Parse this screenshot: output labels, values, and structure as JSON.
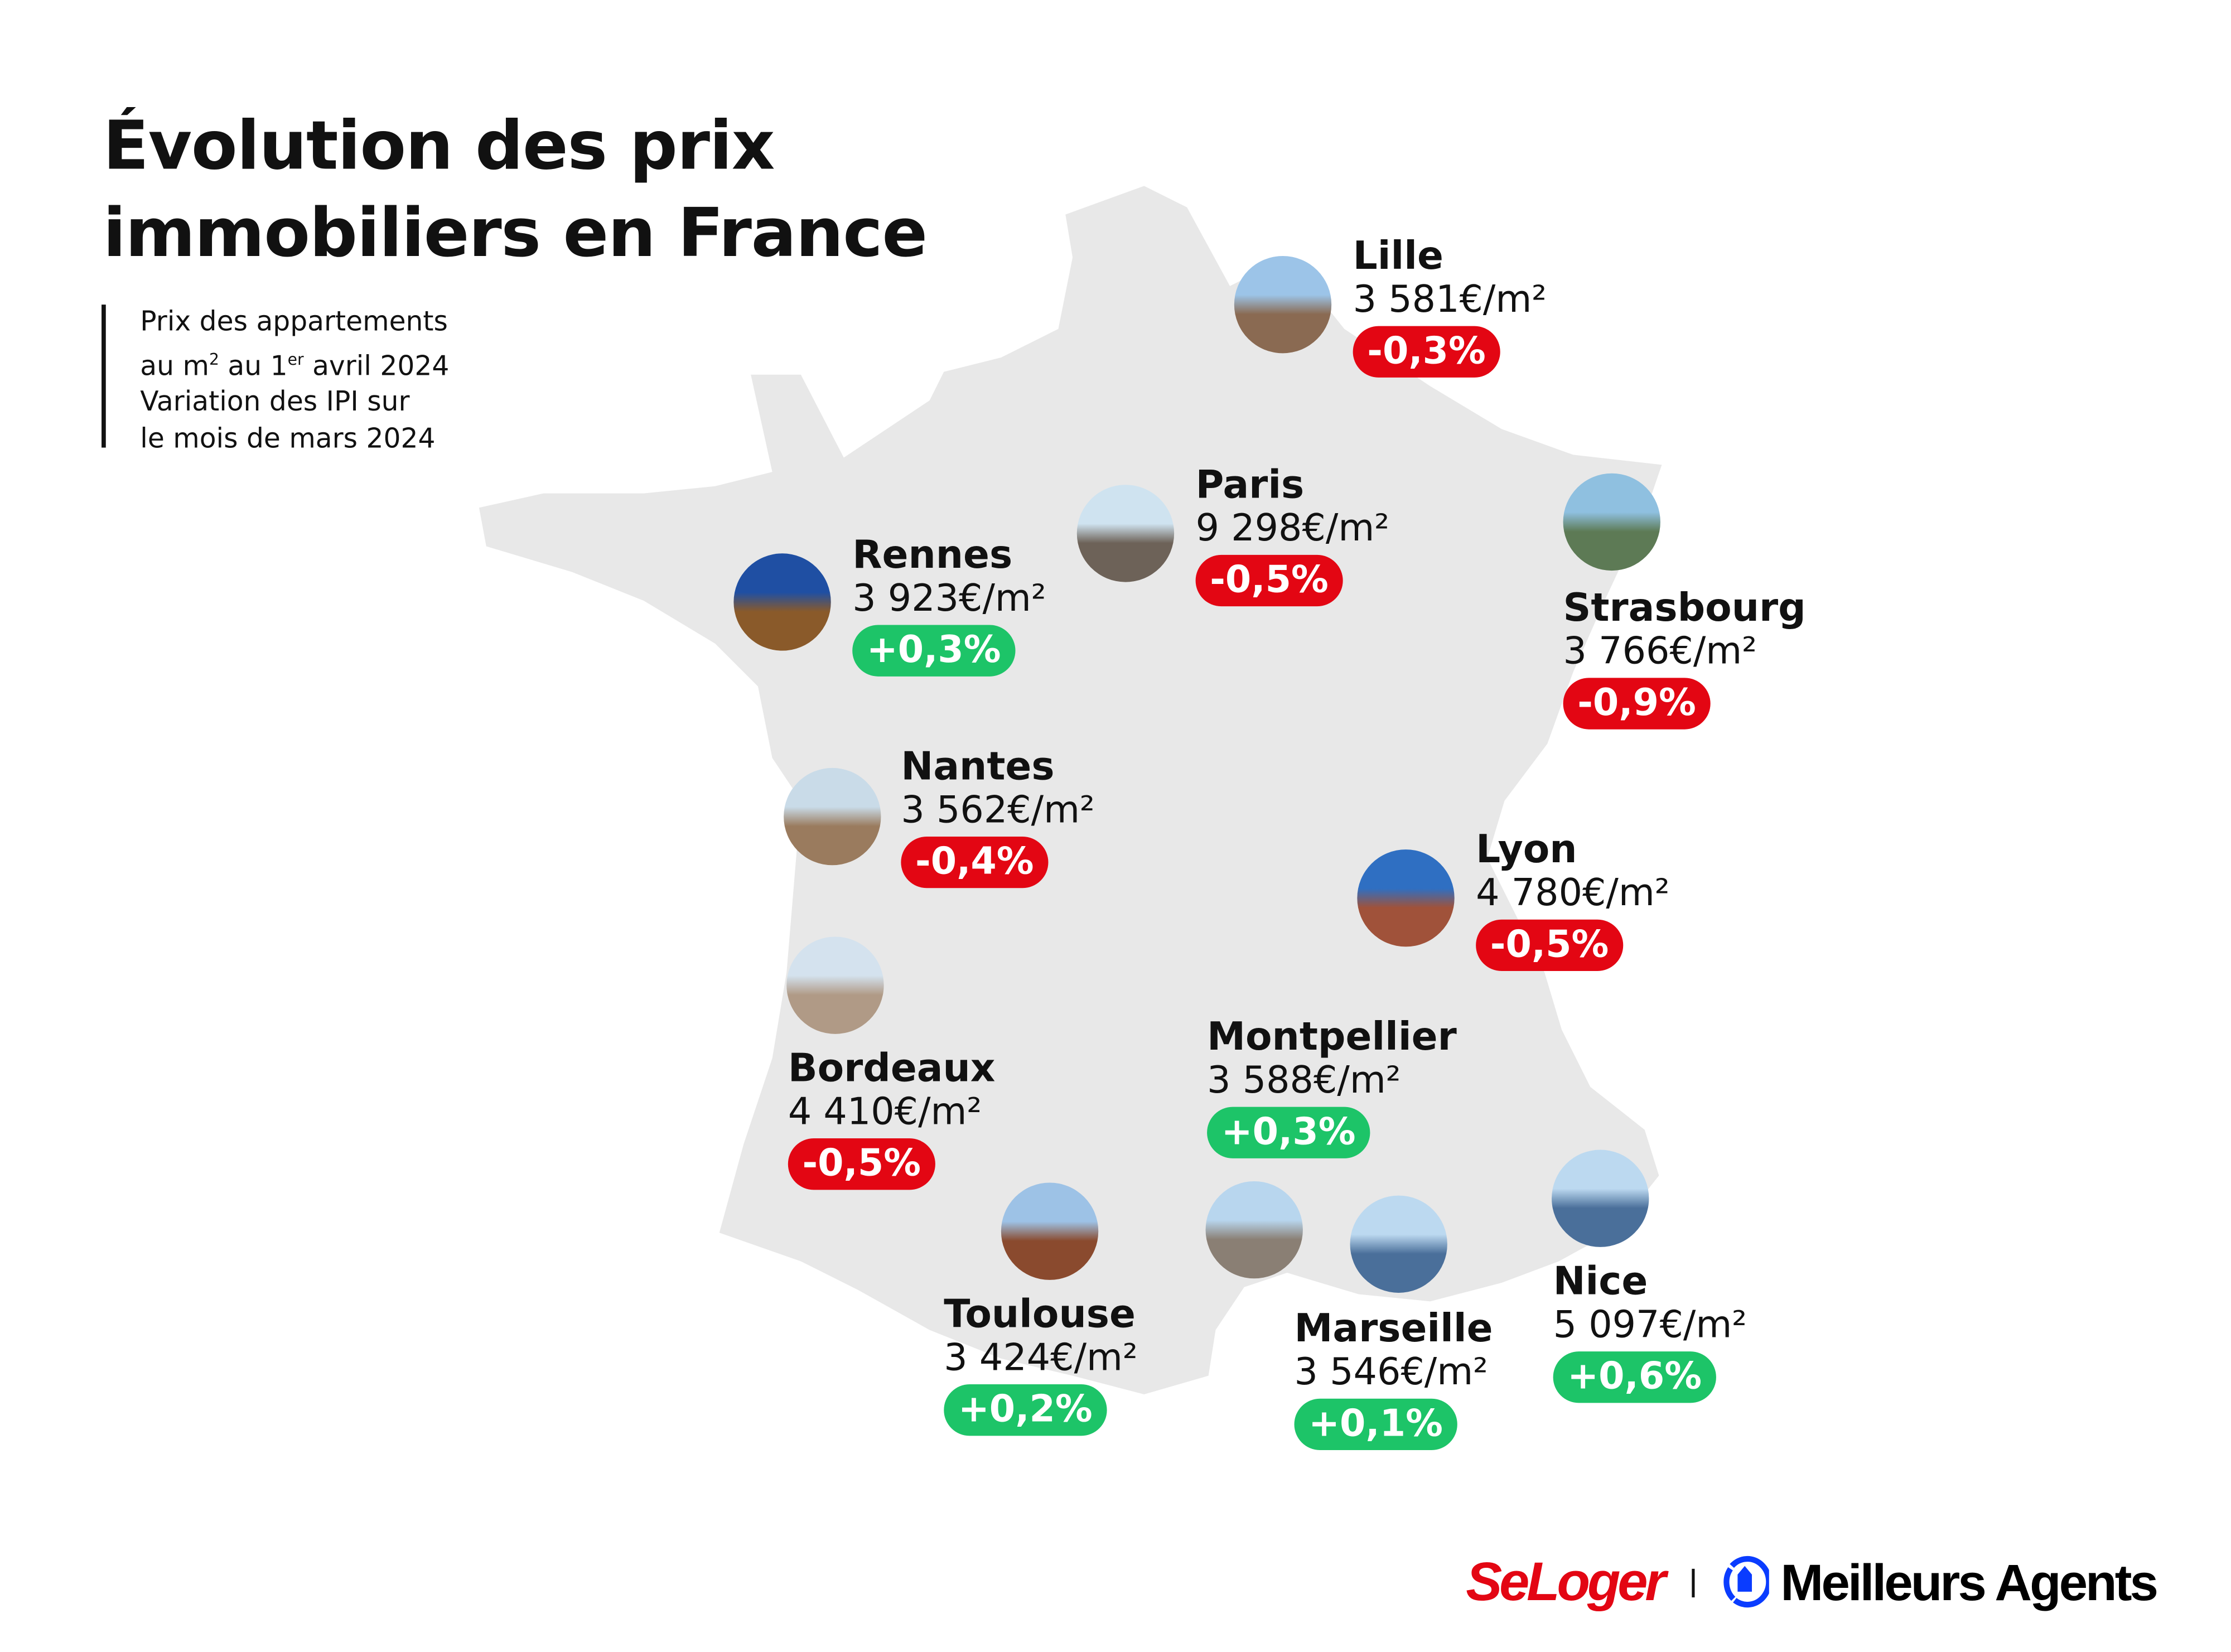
{
  "title_line1": "Évolution des prix",
  "title_line2": "immobiliers en France",
  "subtitle": {
    "line1": "Prix des appartements",
    "line2_a": "au m",
    "line2_sup1": "2",
    "line2_b": " au 1",
    "line2_sup2": "er",
    "line2_c": " avril 2024",
    "line3": "Variation des IPI sur",
    "line4": "le mois de mars 2024"
  },
  "colors": {
    "negative": "#e30613",
    "positive": "#1dc468",
    "map": "#e8e8e8"
  },
  "cities": [
    {
      "name": "Lille",
      "price": "3 581€/m²",
      "variation": "-0,3%",
      "trend": "negative"
    },
    {
      "name": "Paris",
      "price": "9 298€/m²",
      "variation": "-0,5%",
      "trend": "negative"
    },
    {
      "name": "Rennes",
      "price": "3 923€/m²",
      "variation": "+0,3%",
      "trend": "positive"
    },
    {
      "name": "Strasbourg",
      "price": "3 766€/m²",
      "variation": "-0,9%",
      "trend": "negative"
    },
    {
      "name": "Nantes",
      "price": "3 562€/m²",
      "variation": "-0,4%",
      "trend": "negative"
    },
    {
      "name": "Lyon",
      "price": "4 780€/m²",
      "variation": "-0,5%",
      "trend": "negative"
    },
    {
      "name": "Bordeaux",
      "price": "4 410€/m²",
      "variation": "-0,5%",
      "trend": "negative"
    },
    {
      "name": "Montpellier",
      "price": "3 588€/m²",
      "variation": "+0,3%",
      "trend": "positive"
    },
    {
      "name": "Toulouse",
      "price": "3 424€/m²",
      "variation": "+0,2%",
      "trend": "positive"
    },
    {
      "name": "Marseille",
      "price": "3 546€/m²",
      "variation": "+0,1%",
      "trend": "positive"
    },
    {
      "name": "Nice",
      "price": "5 097€/m²",
      "variation": "+0,6%",
      "trend": "positive"
    }
  ],
  "logos": {
    "seloger": "SeLoger",
    "meilleurs_agents": "Meilleurs Agents"
  }
}
